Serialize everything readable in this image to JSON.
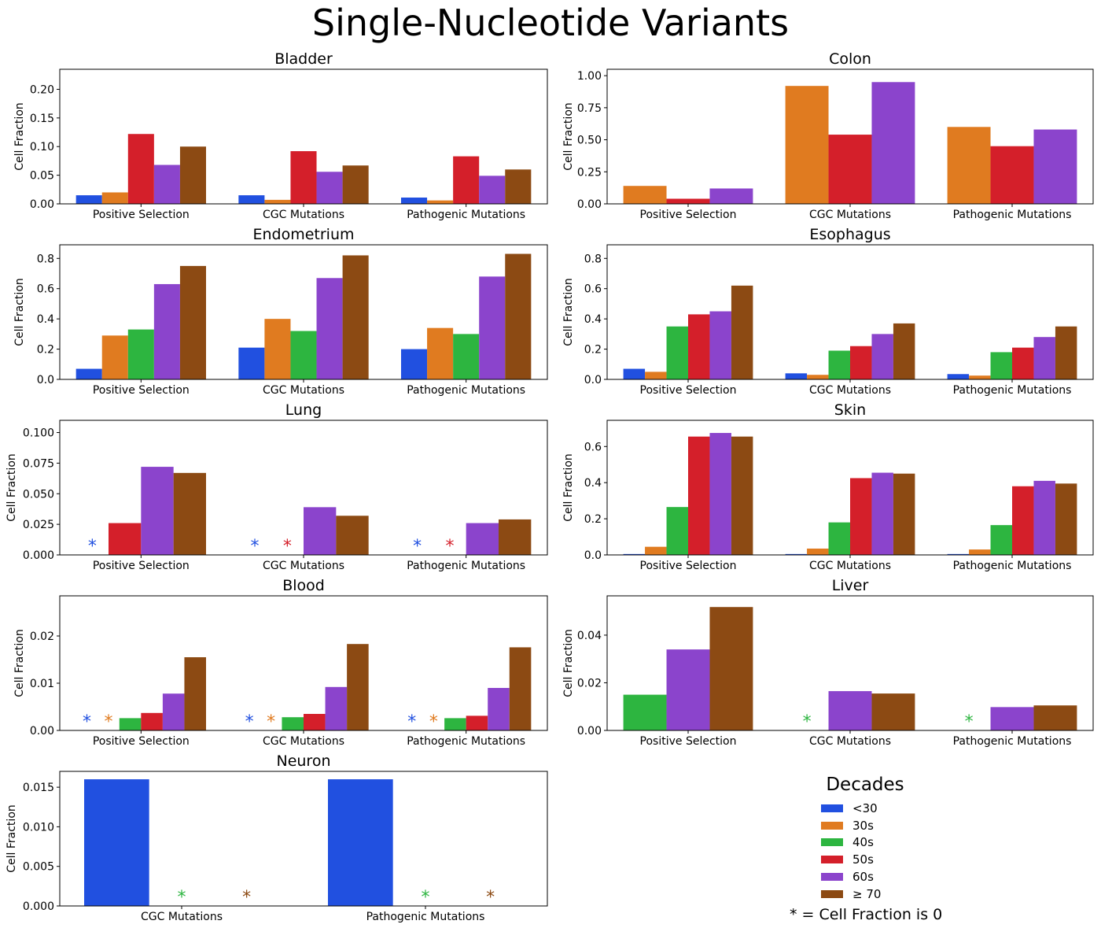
{
  "title": "Single-Nucleotide Variants",
  "colors": {
    "<30": "#2150e0",
    "30s": "#e07b20",
    "40s": "#2db540",
    "50s": "#d41f2a",
    "60s": "#8b44cc",
    "≥70": "#8c4a13"
  },
  "legend": {
    "title": "Decades",
    "items": [
      {
        "key": "<30",
        "label": "<30"
      },
      {
        "key": "30s",
        "label": "30s"
      },
      {
        "key": "40s",
        "label": "40s"
      },
      {
        "key": "50s",
        "label": "50s"
      },
      {
        "key": "60s",
        "label": "60s"
      },
      {
        "key": "≥70",
        "label": "≥ 70"
      }
    ],
    "note": "* = Cell Fraction is 0"
  },
  "chart_data": [
    {
      "type": "bar",
      "title": "Bladder",
      "ylabel": "Cell Fraction",
      "ylim": [
        0,
        0.235
      ],
      "yticks": [
        0,
        0.05,
        0.1,
        0.15,
        0.2
      ],
      "ytick_labels": [
        "0.00",
        "0.05",
        "0.10",
        "0.15",
        "0.20"
      ],
      "categories": [
        "Positive Selection",
        "CGC Mutations",
        "Pathogenic Mutations"
      ],
      "series": [
        {
          "name": "<30",
          "values": [
            0.015,
            0.015,
            0.011
          ]
        },
        {
          "name": "30s",
          "values": [
            0.02,
            0.007,
            0.006
          ]
        },
        {
          "name": "50s",
          "values": [
            0.122,
            0.092,
            0.083
          ]
        },
        {
          "name": "60s",
          "values": [
            0.068,
            0.056,
            0.049
          ]
        },
        {
          "name": "≥70",
          "values": [
            0.1,
            0.067,
            0.06
          ]
        }
      ]
    },
    {
      "type": "bar",
      "title": "Colon",
      "ylabel": "Cell Fraction",
      "ylim": [
        0,
        1.05
      ],
      "yticks": [
        0,
        0.25,
        0.5,
        0.75,
        1.0
      ],
      "ytick_labels": [
        "0.00",
        "0.25",
        "0.50",
        "0.75",
        "1.00"
      ],
      "categories": [
        "Positive Selection",
        "CGC Mutations",
        "Pathogenic Mutations"
      ],
      "series": [
        {
          "name": "30s",
          "values": [
            0.14,
            0.92,
            0.6
          ]
        },
        {
          "name": "50s",
          "values": [
            0.04,
            0.54,
            0.45
          ]
        },
        {
          "name": "60s",
          "values": [
            0.12,
            0.95,
            0.58
          ]
        }
      ]
    },
    {
      "type": "bar",
      "title": "Endometrium",
      "ylabel": "Cell Fraction",
      "ylim": [
        0,
        0.89
      ],
      "yticks": [
        0,
        0.2,
        0.4,
        0.6,
        0.8
      ],
      "ytick_labels": [
        "0.0",
        "0.2",
        "0.4",
        "0.6",
        "0.8"
      ],
      "categories": [
        "Positive Selection",
        "CGC Mutations",
        "Pathogenic Mutations"
      ],
      "series": [
        {
          "name": "<30",
          "values": [
            0.07,
            0.21,
            0.2
          ]
        },
        {
          "name": "30s",
          "values": [
            0.29,
            0.4,
            0.34
          ]
        },
        {
          "name": "40s",
          "values": [
            0.33,
            0.32,
            0.3
          ]
        },
        {
          "name": "60s",
          "values": [
            0.63,
            0.67,
            0.68
          ]
        },
        {
          "name": "≥70",
          "values": [
            0.75,
            0.82,
            0.83
          ]
        }
      ]
    },
    {
      "type": "bar",
      "title": "Esophagus",
      "ylabel": "Cell Fraction",
      "ylim": [
        0,
        0.89
      ],
      "yticks": [
        0,
        0.2,
        0.4,
        0.6,
        0.8
      ],
      "ytick_labels": [
        "0.0",
        "0.2",
        "0.4",
        "0.6",
        "0.8"
      ],
      "categories": [
        "Positive Selection",
        "CGC Mutations",
        "Pathogenic Mutations"
      ],
      "series": [
        {
          "name": "<30",
          "values": [
            0.07,
            0.04,
            0.035
          ]
        },
        {
          "name": "30s",
          "values": [
            0.05,
            0.03,
            0.025
          ]
        },
        {
          "name": "40s",
          "values": [
            0.35,
            0.19,
            0.18
          ]
        },
        {
          "name": "50s",
          "values": [
            0.43,
            0.22,
            0.21
          ]
        },
        {
          "name": "60s",
          "values": [
            0.45,
            0.3,
            0.28
          ]
        },
        {
          "name": "≥70",
          "values": [
            0.62,
            0.37,
            0.35
          ]
        }
      ]
    },
    {
      "type": "bar",
      "title": "Lung",
      "ylabel": "Cell Fraction",
      "ylim": [
        0,
        0.11
      ],
      "yticks": [
        0,
        0.025,
        0.05,
        0.075,
        0.1
      ],
      "ytick_labels": [
        "0.000",
        "0.025",
        "0.050",
        "0.075",
        "0.100"
      ],
      "categories": [
        "Positive Selection",
        "CGC Mutations",
        "Pathogenic Mutations"
      ],
      "series": [
        {
          "name": "<30",
          "values": [
            0,
            0,
            0
          ]
        },
        {
          "name": "50s",
          "values": [
            0.026,
            0,
            0
          ]
        },
        {
          "name": "60s",
          "values": [
            0.072,
            0.039,
            0.026
          ]
        },
        {
          "name": "≥70",
          "values": [
            0.067,
            0.032,
            0.029
          ]
        }
      ]
    },
    {
      "type": "bar",
      "title": "Skin",
      "ylabel": "Cell Fraction",
      "ylim": [
        0,
        0.745
      ],
      "yticks": [
        0,
        0.2,
        0.4,
        0.6
      ],
      "ytick_labels": [
        "0.0",
        "0.2",
        "0.4",
        "0.6"
      ],
      "categories": [
        "Positive Selection",
        "CGC Mutations",
        "Pathogenic Mutations"
      ],
      "series": [
        {
          "name": "<30",
          "values": [
            0.005,
            0.005,
            0.005
          ]
        },
        {
          "name": "30s",
          "values": [
            0.045,
            0.035,
            0.03
          ]
        },
        {
          "name": "40s",
          "values": [
            0.265,
            0.18,
            0.165
          ]
        },
        {
          "name": "50s",
          "values": [
            0.655,
            0.425,
            0.38
          ]
        },
        {
          "name": "60s",
          "values": [
            0.675,
            0.455,
            0.41
          ]
        },
        {
          "name": "≥70",
          "values": [
            0.655,
            0.45,
            0.395
          ]
        }
      ]
    },
    {
      "type": "bar",
      "title": "Blood",
      "ylabel": "Cell Fraction",
      "ylim": [
        0,
        0.0285
      ],
      "yticks": [
        0,
        0.01,
        0.02
      ],
      "ytick_labels": [
        "0.00",
        "0.01",
        "0.02"
      ],
      "categories": [
        "Positive Selection",
        "CGC Mutations",
        "Pathogenic Mutations"
      ],
      "series": [
        {
          "name": "<30",
          "values": [
            0,
            0,
            0
          ]
        },
        {
          "name": "30s",
          "values": [
            0,
            0,
            0
          ]
        },
        {
          "name": "40s",
          "values": [
            0.0026,
            0.0028,
            0.0026
          ]
        },
        {
          "name": "50s",
          "values": [
            0.0037,
            0.0035,
            0.0031
          ]
        },
        {
          "name": "60s",
          "values": [
            0.0078,
            0.0092,
            0.009
          ]
        },
        {
          "name": "≥70",
          "values": [
            0.0155,
            0.0183,
            0.0176
          ]
        }
      ]
    },
    {
      "type": "bar",
      "title": "Liver",
      "ylabel": "Cell Fraction",
      "ylim": [
        0,
        0.0565
      ],
      "yticks": [
        0,
        0.02,
        0.04
      ],
      "ytick_labels": [
        "0.00",
        "0.02",
        "0.04"
      ],
      "categories": [
        "Positive Selection",
        "CGC Mutations",
        "Pathogenic Mutations"
      ],
      "series": [
        {
          "name": "40s",
          "values": [
            0.015,
            0,
            0
          ]
        },
        {
          "name": "60s",
          "values": [
            0.034,
            0.0165,
            0.0098
          ]
        },
        {
          "name": "≥70",
          "values": [
            0.0518,
            0.0155,
            0.0105
          ]
        }
      ]
    },
    {
      "type": "bar",
      "title": "Neuron",
      "ylabel": "Cell Fraction",
      "ylim": [
        0,
        0.017
      ],
      "yticks": [
        0,
        0.005,
        0.01,
        0.015
      ],
      "ytick_labels": [
        "0.000",
        "0.005",
        "0.010",
        "0.015"
      ],
      "categories": [
        "CGC Mutations",
        "Pathogenic Mutations"
      ],
      "series": [
        {
          "name": "<30",
          "values": [
            0.016,
            0.016
          ]
        },
        {
          "name": "40s",
          "values": [
            0,
            0
          ]
        },
        {
          "name": "≥70",
          "values": [
            0,
            0
          ]
        }
      ]
    }
  ]
}
